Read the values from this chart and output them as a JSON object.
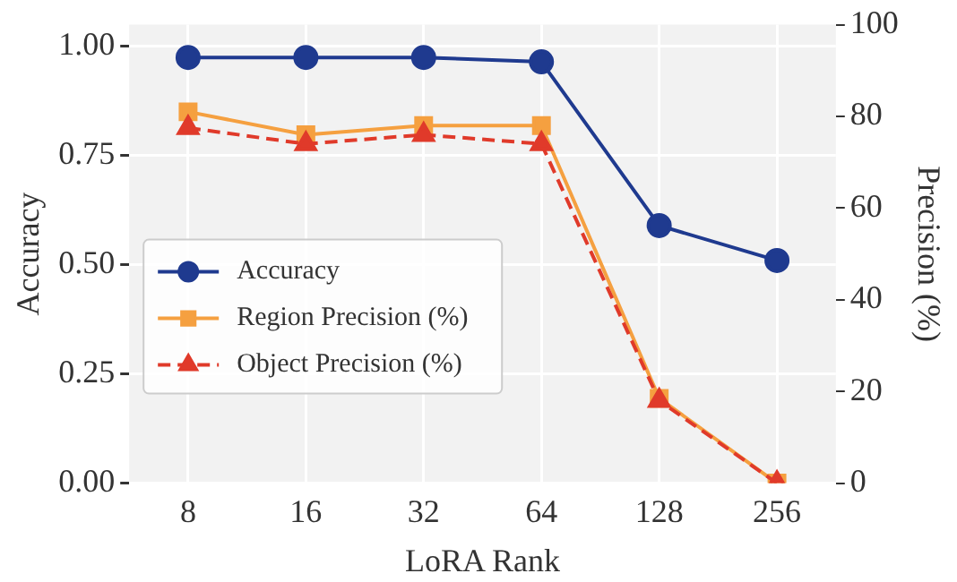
{
  "chart_data": {
    "type": "line",
    "xlabel": "LoRA Rank",
    "ylabel": "Accuracy",
    "y2label": "Precision (%)",
    "categories": [
      "8",
      "16",
      "32",
      "64",
      "128",
      "256"
    ],
    "series": [
      {
        "name": "Accuracy",
        "color": "#1f3a8f",
        "marker": "circle",
        "line_style": "solid",
        "values": [
          0.975,
          0.975,
          0.975,
          0.965,
          0.59,
          0.51
        ]
      },
      {
        "name": "Region Precision (%)",
        "color": "#f5a040",
        "marker": "square",
        "line_style": "solid",
        "axis": "y2",
        "values": [
          81,
          76,
          78,
          78,
          18.5,
          0
        ]
      },
      {
        "name": "Object Precision (%)",
        "color": "#e03a2a",
        "marker": "triangle",
        "line_style": "dashed",
        "axis": "y2",
        "values": [
          77.5,
          74,
          76,
          74,
          18,
          0
        ]
      }
    ],
    "ylim": [
      0,
      1.05
    ],
    "yticks": [
      {
        "value": 0,
        "label": "0.00"
      },
      {
        "value": 0.25,
        "label": "0.25"
      },
      {
        "value": 0.5,
        "label": "0.50"
      },
      {
        "value": 0.75,
        "label": "0.75"
      },
      {
        "value": 1,
        "label": "1.00"
      }
    ],
    "y2lim": [
      0,
      100
    ],
    "y2ticks": [
      0,
      20,
      40,
      60,
      80,
      100
    ],
    "grid": true,
    "legend": "left"
  }
}
